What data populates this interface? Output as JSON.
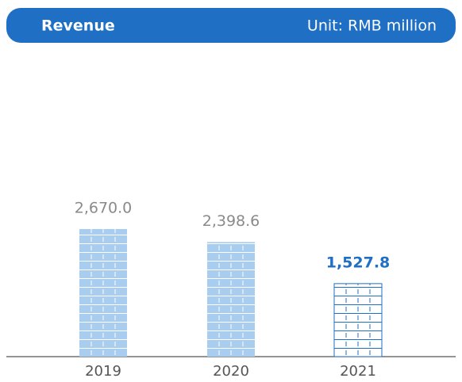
{
  "chart_data": {
    "type": "bar",
    "title": "Revenue",
    "subtitle": "Unit: RMB million",
    "categories": [
      "2019",
      "2020",
      "2021"
    ],
    "values": [
      2670.0,
      2398.6,
      1527.8
    ],
    "value_labels": [
      "2,670.0",
      "2,398.6",
      "1,527.8"
    ],
    "colors": [
      "#a9cdee",
      "#a9cdee",
      "#ffffff"
    ],
    "line_colors": [
      "#ffffff",
      "#ffffff",
      "#1f6fc5"
    ],
    "value_label_colors": [
      "#8a8a8a",
      "#8a8a8a",
      "#1f6fc5"
    ],
    "header_color": "#1f6fc5"
  }
}
